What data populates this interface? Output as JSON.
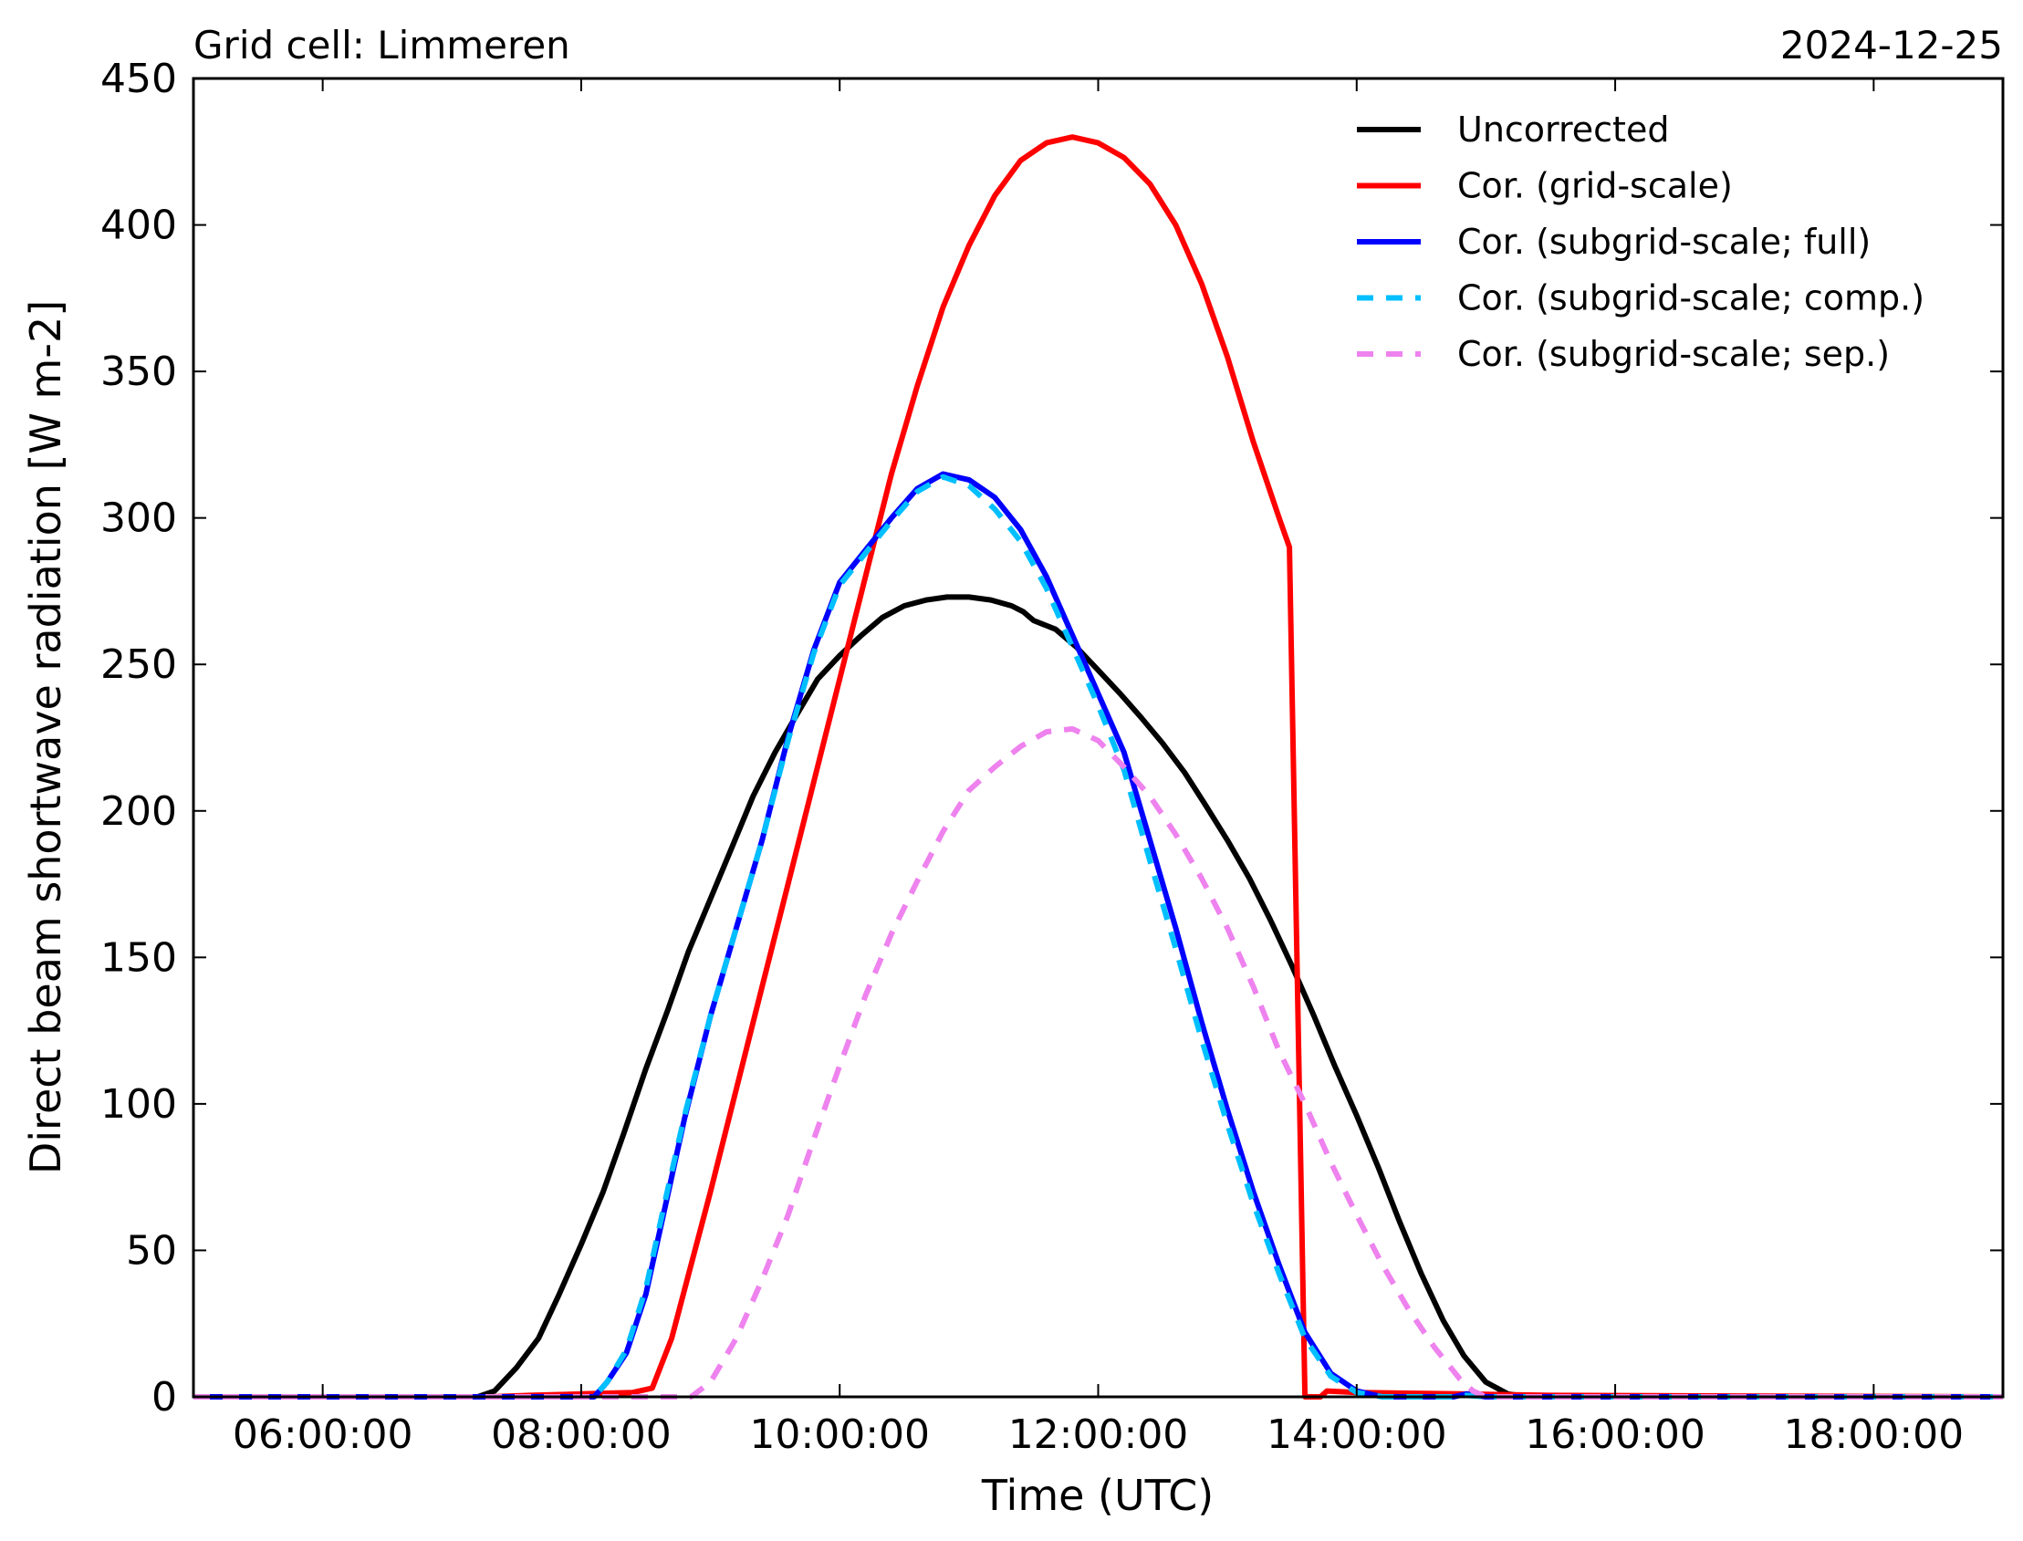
{
  "chart_data": {
    "type": "line",
    "title_left": "Grid cell: Limmeren",
    "title_right": "2024-12-25",
    "xlabel": "Time (UTC)",
    "ylabel": "Direct beam shortwave radiation [W m-2]",
    "xlim": [
      5.0,
      19.0
    ],
    "ylim": [
      0,
      450
    ],
    "xticks": [
      {
        "value": 6,
        "label": "06:00:00"
      },
      {
        "value": 8,
        "label": "08:00:00"
      },
      {
        "value": 10,
        "label": "10:00:00"
      },
      {
        "value": 12,
        "label": "12:00:00"
      },
      {
        "value": 14,
        "label": "14:00:00"
      },
      {
        "value": 16,
        "label": "16:00:00"
      },
      {
        "value": 18,
        "label": "18:00:00"
      }
    ],
    "yticks": [
      {
        "value": 0,
        "label": "0"
      },
      {
        "value": 50,
        "label": "50"
      },
      {
        "value": 100,
        "label": "100"
      },
      {
        "value": 150,
        "label": "150"
      },
      {
        "value": 200,
        "label": "200"
      },
      {
        "value": 250,
        "label": "250"
      },
      {
        "value": 300,
        "label": "300"
      },
      {
        "value": 350,
        "label": "350"
      },
      {
        "value": 400,
        "label": "400"
      },
      {
        "value": 450,
        "label": "450"
      }
    ],
    "legend_position": "top-right",
    "grid": false,
    "series": [
      {
        "name": "Uncorrected",
        "color": "#000000",
        "style": "solid",
        "x": [
          5.0,
          7.2,
          7.33,
          7.5,
          7.67,
          7.83,
          8.0,
          8.17,
          8.33,
          8.5,
          8.67,
          8.83,
          9.0,
          9.17,
          9.33,
          9.5,
          9.67,
          9.83,
          10.0,
          10.17,
          10.33,
          10.5,
          10.67,
          10.83,
          11.0,
          11.17,
          11.33,
          11.42,
          11.5,
          11.67,
          11.83,
          12.0,
          12.17,
          12.33,
          12.5,
          12.67,
          12.83,
          13.0,
          13.17,
          13.33,
          13.5,
          13.67,
          13.83,
          14.0,
          14.17,
          14.33,
          14.5,
          14.67,
          14.83,
          15.0,
          15.17,
          15.33,
          15.5,
          15.63,
          19.0
        ],
        "y": [
          0,
          0,
          2,
          10,
          20,
          35,
          52,
          70,
          90,
          112,
          132,
          152,
          170,
          188,
          205,
          220,
          233,
          245,
          253,
          260,
          266,
          270,
          272,
          273,
          273,
          272,
          270,
          268,
          265,
          262,
          256,
          248,
          240,
          232,
          223,
          213,
          202,
          190,
          177,
          163,
          147,
          130,
          113,
          96,
          78,
          60,
          42,
          26,
          14,
          5,
          1,
          0,
          0,
          0,
          0
        ]
      },
      {
        "name": "Cor. (grid-scale)",
        "color": "#ff0000",
        "style": "solid",
        "x": [
          5.0,
          7.3,
          7.6,
          8.0,
          8.4,
          8.55,
          8.7,
          8.85,
          9.0,
          9.2,
          9.4,
          9.6,
          9.8,
          10.0,
          10.2,
          10.4,
          10.6,
          10.8,
          11.0,
          11.2,
          11.4,
          11.6,
          11.8,
          12.0,
          12.2,
          12.4,
          12.6,
          12.8,
          13.0,
          13.2,
          13.4,
          13.48,
          13.6,
          13.72,
          13.77,
          14.0,
          14.8,
          15.5,
          19.0
        ],
        "y": [
          0,
          0,
          0.5,
          1,
          1.5,
          3,
          20,
          45,
          70,
          105,
          140,
          175,
          210,
          245,
          280,
          315,
          345,
          372,
          393,
          410,
          422,
          428,
          430,
          428,
          423,
          414,
          400,
          380,
          355,
          326,
          300,
          290,
          0,
          0,
          2,
          1.5,
          1,
          0.5,
          0
        ]
      },
      {
        "name": "Cor. (subgrid-scale; full)",
        "color": "#0000ff",
        "style": "solid",
        "x": [
          5.0,
          7.0,
          8.1,
          8.2,
          8.35,
          8.5,
          8.65,
          8.8,
          9.0,
          9.2,
          9.4,
          9.6,
          9.8,
          10.0,
          10.2,
          10.4,
          10.6,
          10.8,
          11.0,
          11.2,
          11.4,
          11.6,
          11.8,
          12.0,
          12.2,
          12.4,
          12.6,
          12.8,
          13.0,
          13.2,
          13.4,
          13.6,
          13.8,
          14.0,
          14.2,
          14.4,
          14.6,
          14.75,
          14.85,
          15.0,
          15.5,
          19.0
        ],
        "y": [
          0,
          0,
          0,
          5,
          15,
          35,
          65,
          95,
          130,
          160,
          190,
          225,
          255,
          278,
          289,
          300,
          310,
          315,
          313,
          307,
          296,
          280,
          260,
          240,
          220,
          190,
          160,
          128,
          98,
          70,
          45,
          22,
          8,
          2,
          0,
          0,
          0,
          0,
          1,
          0,
          0,
          0
        ]
      },
      {
        "name": "Cor. (subgrid-scale; comp.)",
        "color": "#00bfff",
        "style": "dashed",
        "x": [
          5.0,
          7.0,
          8.1,
          8.2,
          8.35,
          8.5,
          8.65,
          8.8,
          9.0,
          9.2,
          9.4,
          9.6,
          9.8,
          10.0,
          10.2,
          10.4,
          10.6,
          10.8,
          11.0,
          11.2,
          11.4,
          11.6,
          11.8,
          12.0,
          12.2,
          12.4,
          12.6,
          12.8,
          13.0,
          13.2,
          13.4,
          13.6,
          13.8,
          14.0,
          14.2,
          14.4,
          14.6,
          14.75,
          14.85,
          15.0,
          15.5,
          19.0
        ],
        "y": [
          0,
          0,
          0,
          5,
          16,
          37,
          67,
          96,
          130,
          160,
          190,
          224,
          254,
          277,
          288,
          299,
          309,
          314,
          311,
          303,
          292,
          276,
          256,
          236,
          214,
          183,
          153,
          122,
          93,
          66,
          42,
          20,
          7,
          1.5,
          0,
          0,
          0,
          0,
          0.5,
          0,
          0,
          0
        ]
      },
      {
        "name": "Cor. (subgrid-scale; sep.)",
        "color": "#ee82ee",
        "style": "dashed",
        "x": [
          5.0,
          8.85,
          9.0,
          9.2,
          9.4,
          9.6,
          9.8,
          10.0,
          10.2,
          10.4,
          10.6,
          10.8,
          11.0,
          11.2,
          11.4,
          11.6,
          11.8,
          12.0,
          12.2,
          12.4,
          12.6,
          12.8,
          13.0,
          13.2,
          13.4,
          13.6,
          13.8,
          14.0,
          14.2,
          14.4,
          14.6,
          14.8,
          14.9,
          15.0,
          19.0
        ],
        "y": [
          0,
          0,
          5,
          20,
          40,
          62,
          88,
          113,
          137,
          158,
          176,
          193,
          207,
          215,
          222,
          227,
          228,
          224,
          215,
          205,
          192,
          177,
          160,
          140,
          118,
          100,
          80,
          62,
          45,
          30,
          17,
          6,
          2,
          0,
          0
        ]
      }
    ]
  }
}
